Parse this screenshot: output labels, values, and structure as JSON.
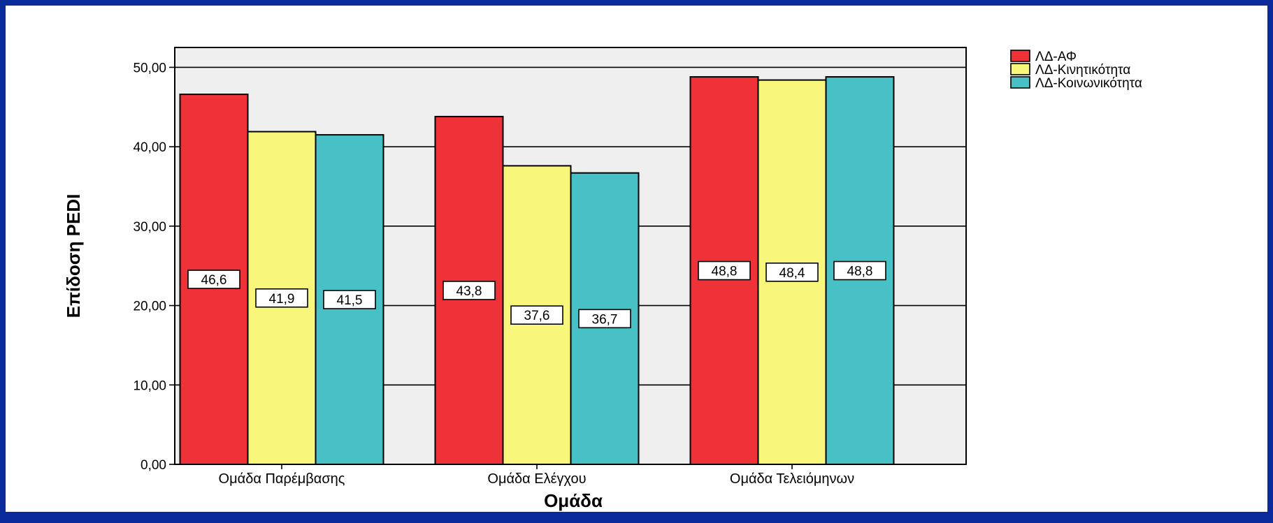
{
  "chart_data": {
    "type": "bar",
    "categories": [
      "Ομάδα Παρέμβασης",
      "Ομάδα Ελέγχου",
      "Ομάδα Τελειόμηνων"
    ],
    "series": [
      {
        "name": "ΛΔ-ΑΦ",
        "color": "#ef3138",
        "values": [
          46.6,
          43.8,
          48.8
        ],
        "labels": [
          "46,6",
          "43,8",
          "48,8"
        ]
      },
      {
        "name": "ΛΔ-Κινητικότητα",
        "color": "#f8f77c",
        "values": [
          41.9,
          37.6,
          48.4
        ],
        "labels": [
          "41,9",
          "37,6",
          "48,4"
        ]
      },
      {
        "name": "ΛΔ-Κοινωνικότητα",
        "color": "#47c1c6",
        "values": [
          41.5,
          36.7,
          48.8
        ],
        "labels": [
          "41,5",
          "36,7",
          "48,8"
        ]
      }
    ],
    "xlabel": "Ομάδα",
    "ylabel": "Επίδοση PEDI",
    "ylim": [
      0,
      52.5
    ],
    "yticks": [
      0,
      10,
      20,
      30,
      40,
      50
    ],
    "ytick_labels": [
      "0,00",
      "10,00",
      "20,00",
      "30,00",
      "40,00",
      "50,00"
    ],
    "grid": true,
    "legend_position": "top-right",
    "plot_background": "#efefef",
    "frame_color": "#0a2a9c"
  }
}
